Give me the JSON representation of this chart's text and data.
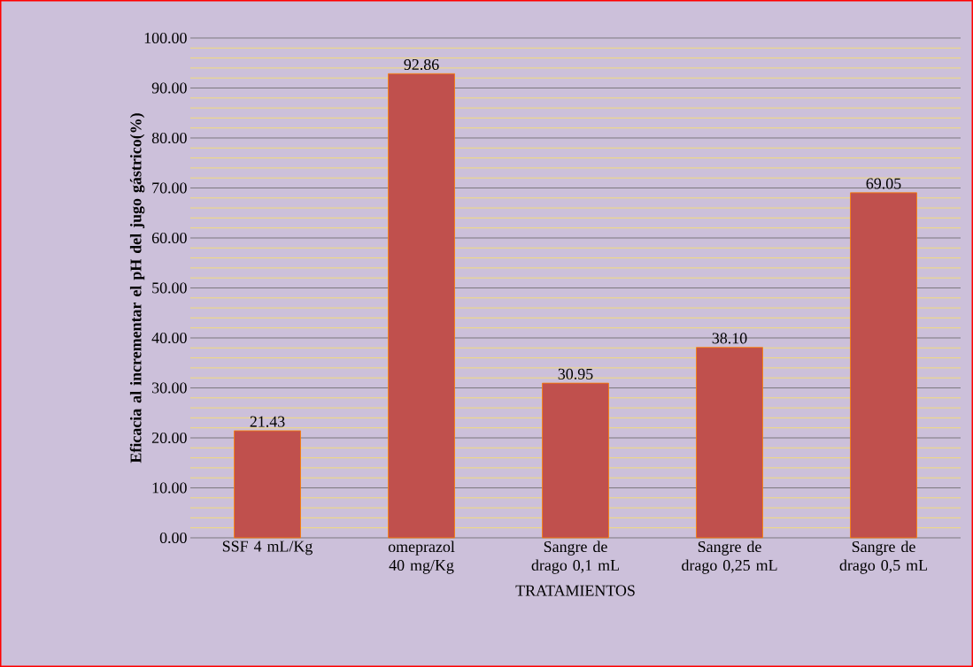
{
  "chart_data": {
    "type": "bar",
    "ylabel": "Eficacia al incrementar el pH del jugo gástrico(%)",
    "xlabel": "TRATAMIENTOS",
    "categories": [
      "SSF 4 mL/Kg",
      "omeprazol 40 mg/Kg",
      "Sangre de drago 0,1 mL",
      "Sangre de drago 0,25 mL",
      "Sangre de drago 0,5 mL"
    ],
    "values": [
      21.43,
      92.86,
      30.95,
      38.1,
      69.05
    ],
    "value_labels": [
      "21.43",
      "92.86",
      "30.95",
      "38.10",
      "69.05"
    ],
    "color": "#c0504d",
    "ylim": [
      0,
      100
    ],
    "yticks": [
      {
        "value": 0,
        "label": "0.00"
      },
      {
        "value": 2,
        "label": null
      },
      {
        "value": 4,
        "label": null
      },
      {
        "value": 6,
        "label": null
      },
      {
        "value": 8,
        "label": null
      },
      {
        "value": 10,
        "label": "10.00"
      },
      {
        "value": 12,
        "label": null
      },
      {
        "value": 14,
        "label": null
      },
      {
        "value": 16,
        "label": null
      },
      {
        "value": 18,
        "label": null
      },
      {
        "value": 20,
        "label": "20.00"
      },
      {
        "value": 22,
        "label": null
      },
      {
        "value": 24,
        "label": null
      },
      {
        "value": 26,
        "label": null
      },
      {
        "value": 28,
        "label": null
      },
      {
        "value": 30,
        "label": "30.00"
      },
      {
        "value": 32,
        "label": null
      },
      {
        "value": 34,
        "label": null
      },
      {
        "value": 36,
        "label": null
      },
      {
        "value": 38,
        "label": null
      },
      {
        "value": 40,
        "label": "40.00"
      },
      {
        "value": 42,
        "label": null
      },
      {
        "value": 44,
        "label": null
      },
      {
        "value": 46,
        "label": null
      },
      {
        "value": 48,
        "label": null
      },
      {
        "value": 50,
        "label": "50.00"
      },
      {
        "value": 52,
        "label": null
      },
      {
        "value": 54,
        "label": null
      },
      {
        "value": 56,
        "label": null
      },
      {
        "value": 58,
        "label": null
      },
      {
        "value": 60,
        "label": "60.00"
      },
      {
        "value": 62,
        "label": null
      },
      {
        "value": 64,
        "label": null
      },
      {
        "value": 66,
        "label": null
      },
      {
        "value": 68,
        "label": null
      },
      {
        "value": 70,
        "label": "70.00"
      },
      {
        "value": 72,
        "label": null
      },
      {
        "value": 74,
        "label": null
      },
      {
        "value": 76,
        "label": null
      },
      {
        "value": 78,
        "label": null
      },
      {
        "value": 80,
        "label": "80.00"
      },
      {
        "value": 82,
        "label": null
      },
      {
        "value": 84,
        "label": null
      },
      {
        "value": 86,
        "label": null
      },
      {
        "value": 88,
        "label": null
      },
      {
        "value": 90,
        "label": "90.00"
      },
      {
        "value": 92,
        "label": null
      },
      {
        "value": 94,
        "label": null
      },
      {
        "value": 96,
        "label": null
      },
      {
        "value": 98,
        "label": null
      },
      {
        "value": 100,
        "label": "100.00"
      }
    ],
    "grid": "y"
  }
}
